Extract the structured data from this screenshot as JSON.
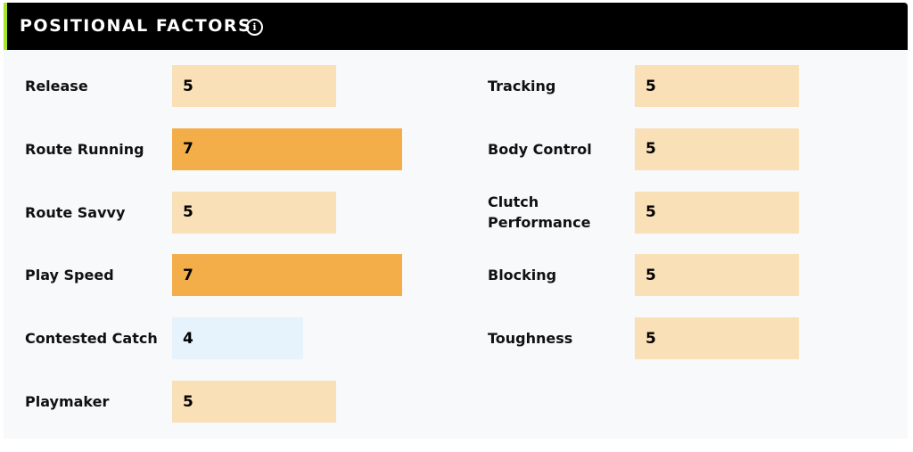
{
  "header": {
    "title": "POSITIONAL FACTORS",
    "info_icon": "info-icon"
  },
  "colors": {
    "low": "#e6f3fc",
    "mid": "#f9e0b7",
    "high": "#f3ae4a",
    "accent": "#a6e22e"
  },
  "left_factors": [
    {
      "label": "Release",
      "value": "5"
    },
    {
      "label": "Route Running",
      "value": "7"
    },
    {
      "label": "Route Savvy",
      "value": "5"
    },
    {
      "label": "Play Speed",
      "value": "7"
    },
    {
      "label": "Contested Catch",
      "value": "4"
    },
    {
      "label": "Playmaker",
      "value": "5"
    }
  ],
  "right_factors": [
    {
      "label": "Tracking",
      "value": "5"
    },
    {
      "label": "Body Control",
      "value": "5"
    },
    {
      "label": "Clutch Performance",
      "value": "5"
    },
    {
      "label": "Blocking",
      "value": "5"
    },
    {
      "label": "Toughness",
      "value": "5"
    }
  ]
}
